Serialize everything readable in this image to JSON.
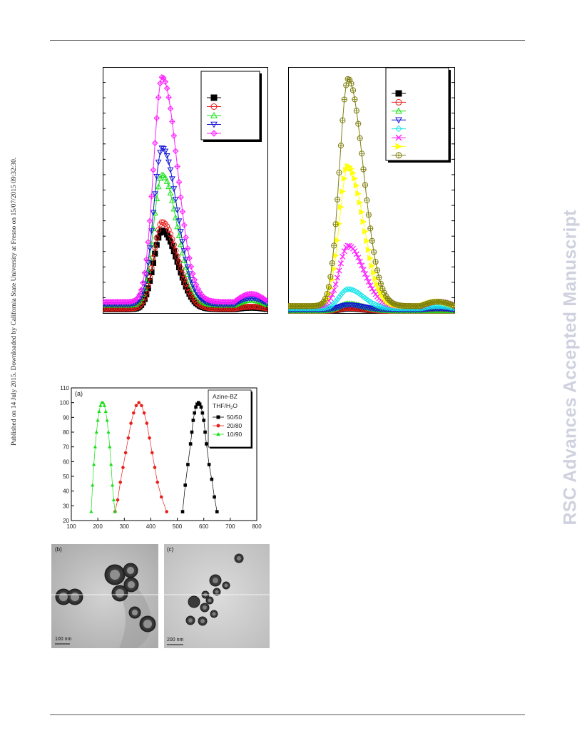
{
  "page": {
    "side_note": "Published on 14 July 2015. Downloaded by California State University at Fresno on 15/07/2015 09:32:30.",
    "watermark": "RSC Advances Accepted Manuscript"
  },
  "colors": {
    "black": "#000000",
    "red": "#e8201c",
    "green": "#19e019",
    "blue": "#1414d8",
    "magenta": "#ff21ff",
    "cyan": "#18e6ea",
    "yellow": "#ffff12",
    "olive": "#7f7f10"
  },
  "chart_data": [
    {
      "type": "line",
      "panel": "top-left",
      "legend": "top-right",
      "grid": false,
      "series_markers": [
        "filled-square",
        "open-circle",
        "open-triangle-up",
        "open-triangle-down",
        "open-diamond-cross"
      ],
      "series_colors": [
        "black",
        "red",
        "green",
        "blue",
        "magenta"
      ],
      "curve_params": [
        {
          "peak": 0.7,
          "base": 0.015
        },
        {
          "peak": 0.77,
          "base": 0.02
        },
        {
          "peak": 1.16,
          "base": 0.05
        },
        {
          "peak": 1.39,
          "base": 0.06
        },
        {
          "peak": 2.0,
          "base": 0.08
        }
      ],
      "x_range": [
        0,
        1
      ],
      "y_range": [
        0,
        2.15
      ]
    },
    {
      "type": "line",
      "panel": "top-right",
      "legend": "top-right",
      "grid": false,
      "series_markers": [
        "filled-square",
        "open-circle",
        "open-triangle-up",
        "open-triangle-down",
        "open-diamond",
        "x-cross",
        "triangle-right",
        "circle-plus"
      ],
      "series_colors": [
        "black",
        "red",
        "green",
        "blue",
        "cyan",
        "magenta",
        "yellow",
        "olive"
      ],
      "curve_params": [
        {
          "peak": 0.01,
          "base": 0.0
        },
        {
          "peak": 0.012,
          "base": 0.0
        },
        {
          "peak": 0.03,
          "base": 0.0
        },
        {
          "peak": 0.02,
          "base": 0.005
        },
        {
          "peak": 0.08,
          "base": 0.01
        },
        {
          "peak": 0.25,
          "base": 0.02
        },
        {
          "peak": 0.58,
          "base": 0.02
        },
        {
          "peak": 0.94,
          "base": 0.02
        }
      ],
      "x_range": [
        0,
        1
      ],
      "y_range": [
        0,
        1.0
      ]
    },
    {
      "type": "line",
      "panel": "a",
      "panel_label": "(a)",
      "xlim": [
        100,
        800
      ],
      "ylim": [
        20,
        110
      ],
      "x_ticks": [
        100,
        200,
        300,
        400,
        500,
        600,
        700,
        800
      ],
      "y_ticks": [
        20,
        30,
        40,
        50,
        60,
        70,
        80,
        90,
        100,
        110
      ],
      "legend": "top-right",
      "legend_title_lines": [
        "Azine-BZ",
        "THF/H",
        "2",
        "O"
      ],
      "series": [
        {
          "name": "50/50",
          "color": "black",
          "marker": "square",
          "x": [
            520,
            530,
            540,
            550,
            555,
            560,
            565,
            570,
            575,
            580,
            585,
            590,
            595,
            600,
            605,
            610,
            620,
            630,
            640,
            650
          ],
          "y": [
            26,
            44,
            58,
            72,
            80,
            88,
            93,
            97,
            99,
            100,
            99,
            97,
            93,
            88,
            80,
            72,
            58,
            48,
            36,
            26
          ]
        },
        {
          "name": "20/80",
          "color": "red",
          "marker": "circle",
          "x": [
            265,
            275,
            285,
            295,
            305,
            315,
            325,
            335,
            345,
            355,
            365,
            375,
            385,
            395,
            405,
            415,
            425,
            440,
            460
          ],
          "y": [
            26,
            34,
            46,
            56,
            66,
            76,
            86,
            93,
            98,
            100,
            98,
            93,
            86,
            76,
            66,
            56,
            46,
            36,
            26
          ]
        },
        {
          "name": "10/90",
          "color": "green",
          "marker": "triangle",
          "x": [
            175,
            180,
            185,
            190,
            195,
            200,
            205,
            210,
            215,
            220,
            225,
            230,
            235,
            240,
            245,
            250,
            255,
            260,
            265
          ],
          "y": [
            26,
            44,
            58,
            70,
            80,
            88,
            94,
            98,
            100,
            100,
            98,
            94,
            88,
            80,
            70,
            58,
            44,
            34,
            26
          ]
        }
      ]
    }
  ],
  "images": {
    "b": {
      "label": "(b)",
      "scale": "100 nm"
    },
    "c": {
      "label": "(c)",
      "scale": "200 nm"
    }
  }
}
